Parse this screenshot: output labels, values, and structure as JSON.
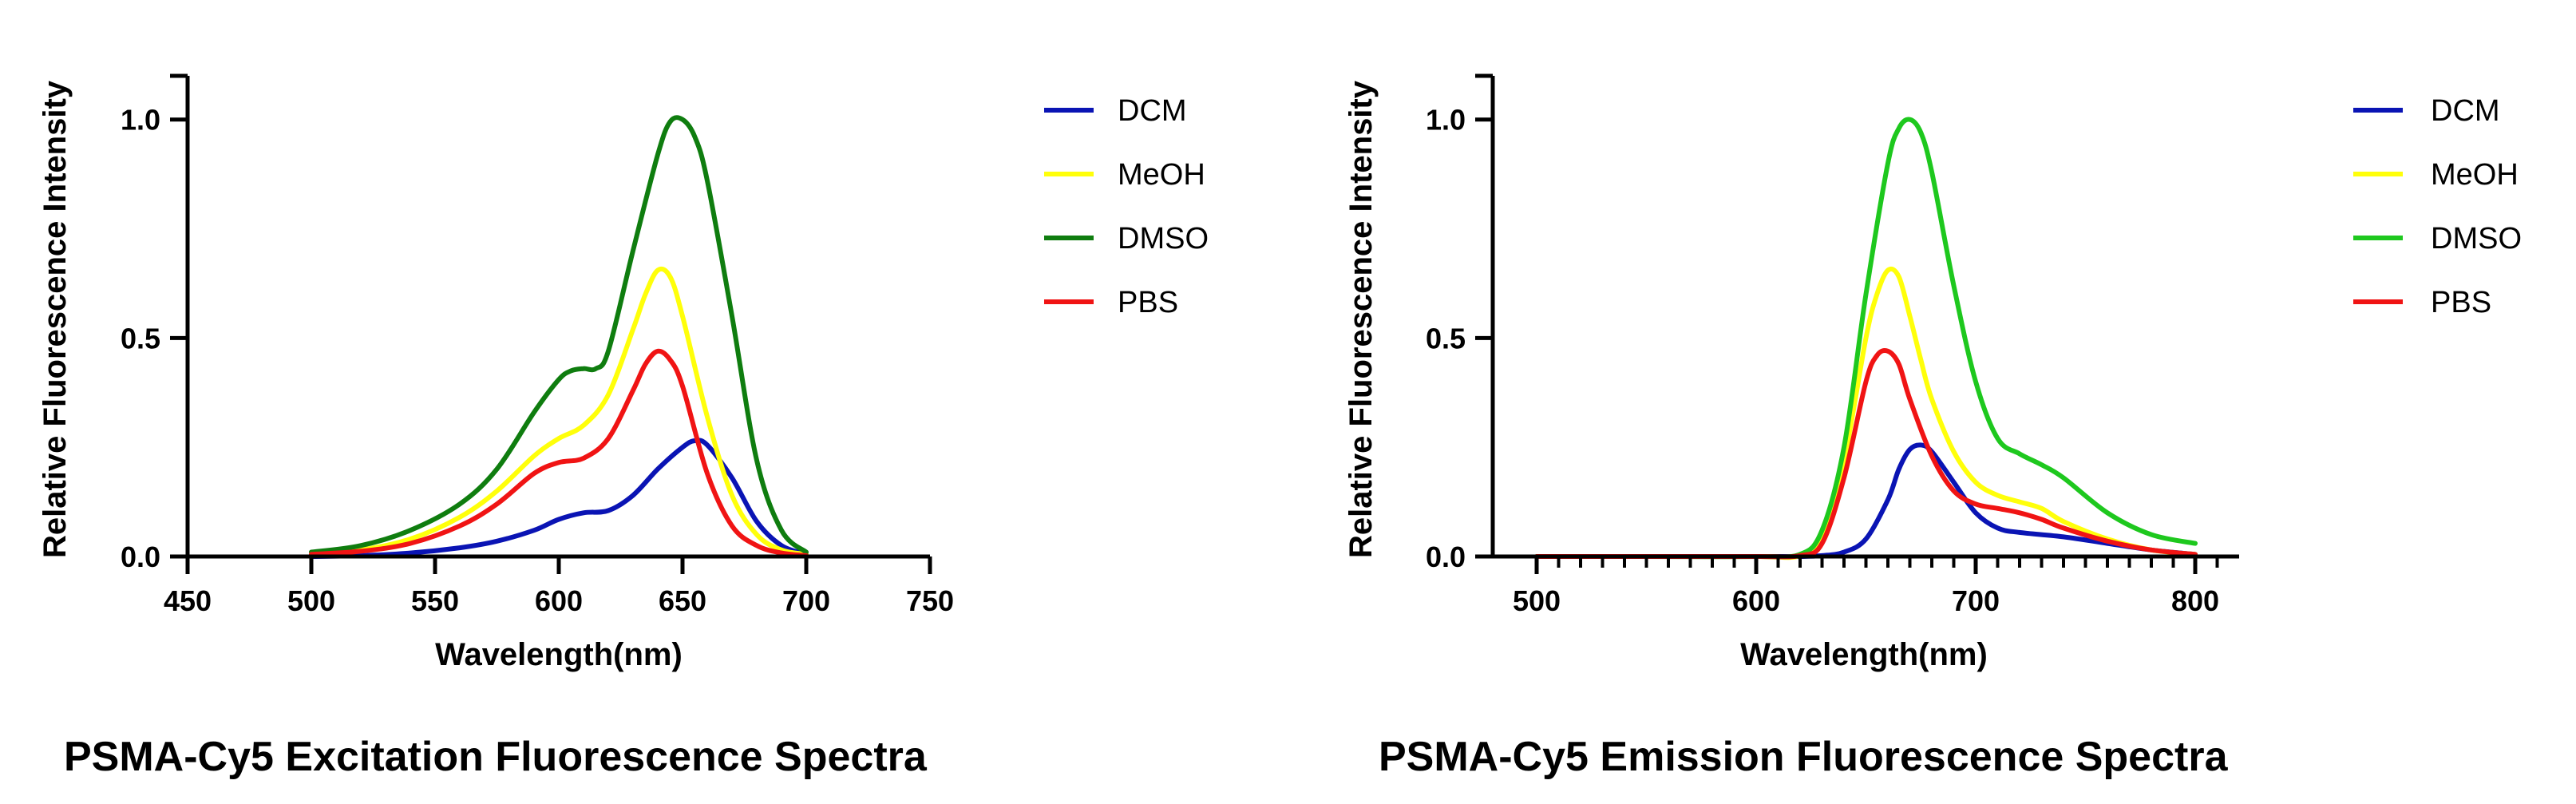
{
  "chart_data": [
    {
      "type": "line",
      "title": "PSMA-Cy5 Excitation Fluorescence Spectra",
      "xlabel": "Wavelength(nm)",
      "ylabel": "Relative Fluorescence Intensity",
      "xlim": [
        450,
        750
      ],
      "ylim": [
        0,
        1.1
      ],
      "xticks": [
        450,
        500,
        550,
        600,
        650,
        700,
        750
      ],
      "xtick_labels": [
        "450",
        "500",
        "550",
        "600",
        "650",
        "700",
        "750"
      ],
      "minor_xticks": [],
      "yticks": [
        0,
        0.5,
        1.0
      ],
      "ytick_labels": [
        "0.0",
        "0.5",
        "1.0"
      ],
      "legend_position": "right",
      "series": [
        {
          "name": "DCM",
          "color": "#0a14b4",
          "x": [
            500,
            520,
            540,
            560,
            575,
            590,
            600,
            610,
            620,
            630,
            640,
            650,
            655,
            660,
            670,
            680,
            690,
            700
          ],
          "y": [
            0.0,
            0.002,
            0.008,
            0.02,
            0.035,
            0.06,
            0.085,
            0.1,
            0.105,
            0.14,
            0.2,
            0.25,
            0.265,
            0.255,
            0.18,
            0.08,
            0.025,
            0.005
          ]
        },
        {
          "name": "MeOH",
          "color": "#ffff0a",
          "x": [
            500,
            520,
            540,
            560,
            575,
            590,
            600,
            610,
            620,
            630,
            635,
            640,
            645,
            650,
            660,
            670,
            680,
            690,
            700
          ],
          "y": [
            0.005,
            0.015,
            0.04,
            0.09,
            0.15,
            0.23,
            0.27,
            0.3,
            0.37,
            0.52,
            0.6,
            0.655,
            0.64,
            0.55,
            0.32,
            0.14,
            0.05,
            0.015,
            0.005
          ]
        },
        {
          "name": "DMSO",
          "color": "#0f7d0f",
          "x": [
            500,
            520,
            540,
            560,
            575,
            590,
            600,
            605,
            610,
            615,
            620,
            630,
            640,
            645,
            650,
            655,
            660,
            670,
            680,
            690,
            700
          ],
          "y": [
            0.01,
            0.025,
            0.06,
            0.12,
            0.2,
            0.33,
            0.405,
            0.425,
            0.43,
            0.43,
            0.47,
            0.7,
            0.92,
            0.995,
            1.0,
            0.96,
            0.86,
            0.55,
            0.22,
            0.06,
            0.01
          ]
        },
        {
          "name": "PBS",
          "color": "#f01414",
          "x": [
            500,
            520,
            540,
            560,
            575,
            590,
            600,
            610,
            620,
            630,
            635,
            640,
            645,
            650,
            660,
            670,
            680,
            690,
            700
          ],
          "y": [
            0.005,
            0.012,
            0.03,
            0.07,
            0.12,
            0.19,
            0.215,
            0.225,
            0.27,
            0.38,
            0.44,
            0.47,
            0.45,
            0.39,
            0.19,
            0.07,
            0.025,
            0.008,
            0.002
          ]
        }
      ]
    },
    {
      "type": "line",
      "title": "PSMA-Cy5 Emission Fluorescence Spectra",
      "xlabel": "Wavelength(nm)",
      "ylabel": "Relative Fluorescence Intensity",
      "xlim": [
        480,
        820
      ],
      "ylim": [
        0,
        1.1
      ],
      "xticks": [
        500,
        600,
        700,
        800
      ],
      "xtick_labels": [
        "500",
        "600",
        "700",
        "800"
      ],
      "minor_xticks": [
        510,
        520,
        530,
        540,
        550,
        560,
        570,
        580,
        590,
        610,
        620,
        630,
        640,
        650,
        660,
        670,
        680,
        690,
        710,
        720,
        730,
        740,
        750,
        760,
        770,
        780,
        790,
        810
      ],
      "yticks": [
        0,
        0.5,
        1.0
      ],
      "ytick_labels": [
        "0.0",
        "0.5",
        "1.0"
      ],
      "legend_position": "right",
      "series": [
        {
          "name": "DCM",
          "color": "#0a14b4",
          "x": [
            500,
            550,
            600,
            620,
            630,
            640,
            650,
            660,
            665,
            670,
            675,
            680,
            690,
            700,
            710,
            720,
            740,
            760,
            780,
            800
          ],
          "y": [
            0,
            0,
            0,
            0,
            0.002,
            0.01,
            0.04,
            0.13,
            0.2,
            0.245,
            0.255,
            0.24,
            0.17,
            0.1,
            0.065,
            0.055,
            0.045,
            0.03,
            0.015,
            0.005
          ]
        },
        {
          "name": "MeOH",
          "color": "#ffff0a",
          "x": [
            500,
            550,
            600,
            620,
            630,
            640,
            650,
            655,
            660,
            665,
            670,
            675,
            680,
            690,
            700,
            710,
            720,
            730,
            740,
            760,
            780,
            800
          ],
          "y": [
            0,
            0,
            0,
            0.002,
            0.05,
            0.22,
            0.5,
            0.6,
            0.655,
            0.64,
            0.55,
            0.45,
            0.36,
            0.24,
            0.17,
            0.14,
            0.125,
            0.11,
            0.08,
            0.04,
            0.015,
            0.005
          ]
        },
        {
          "name": "DMSO",
          "color": "#1ec81e",
          "x": [
            500,
            550,
            600,
            620,
            630,
            640,
            650,
            660,
            665,
            670,
            675,
            680,
            690,
            700,
            710,
            720,
            730,
            740,
            760,
            780,
            800
          ],
          "y": [
            0,
            0,
            0,
            0.005,
            0.06,
            0.25,
            0.6,
            0.9,
            0.98,
            1.0,
            0.97,
            0.88,
            0.62,
            0.4,
            0.27,
            0.235,
            0.21,
            0.18,
            0.1,
            0.05,
            0.03
          ]
        },
        {
          "name": "PBS",
          "color": "#f01414",
          "x": [
            500,
            550,
            600,
            620,
            630,
            640,
            650,
            655,
            660,
            665,
            670,
            680,
            690,
            700,
            710,
            720,
            730,
            740,
            760,
            780,
            800
          ],
          "y": [
            0,
            0,
            0,
            0.002,
            0.03,
            0.18,
            0.4,
            0.46,
            0.47,
            0.44,
            0.36,
            0.23,
            0.15,
            0.12,
            0.11,
            0.1,
            0.085,
            0.065,
            0.035,
            0.015,
            0.005
          ]
        }
      ]
    }
  ]
}
